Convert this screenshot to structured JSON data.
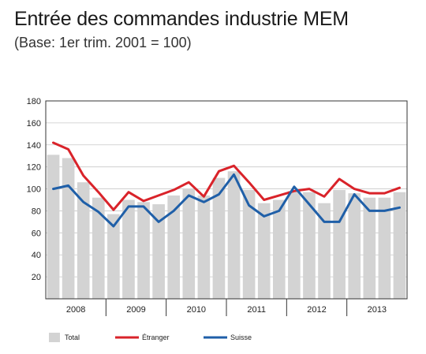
{
  "chart_data": {
    "type": "bar",
    "title": "Entrée des commandes industrie MEM",
    "subtitle": "(Base: 1er trim. 2001 = 100)",
    "xlabel": "",
    "ylabel": "",
    "ylim": [
      0,
      180
    ],
    "yticks": [
      20,
      40,
      60,
      80,
      100,
      120,
      140,
      160,
      180
    ],
    "categories": [
      "2008-Q1",
      "2008-Q2",
      "2008-Q3",
      "2008-Q4",
      "2009-Q1",
      "2009-Q2",
      "2009-Q3",
      "2009-Q4",
      "2010-Q1",
      "2010-Q2",
      "2010-Q3",
      "2010-Q4",
      "2011-Q1",
      "2011-Q2",
      "2011-Q3",
      "2011-Q4",
      "2012-Q1",
      "2012-Q2",
      "2012-Q3",
      "2012-Q4",
      "2013-Q1",
      "2013-Q2",
      "2013-Q3",
      "2013-Q4"
    ],
    "years": [
      "2008",
      "2009",
      "2010",
      "2011",
      "2012",
      "2013"
    ],
    "grid": "horizontal",
    "legend_position": "bottom",
    "series": [
      {
        "name": "Total",
        "kind": "bar",
        "color": "#d3d3d3",
        "values": [
          131,
          128,
          106,
          92,
          77,
          90,
          88,
          86,
          94,
          100,
          94,
          110,
          116,
          99,
          87,
          90,
          98,
          97,
          87,
          99,
          96,
          92,
          92,
          97
        ]
      },
      {
        "name": "Étranger",
        "kind": "line",
        "color": "#d9232a",
        "values": [
          142,
          136,
          112,
          97,
          81,
          97,
          89,
          94,
          99,
          106,
          93,
          116,
          121,
          106,
          90,
          94,
          98,
          100,
          93,
          109,
          100,
          96,
          96,
          101
        ]
      },
      {
        "name": "Suisse",
        "kind": "line",
        "color": "#1f5fa8",
        "values": [
          100,
          103,
          88,
          79,
          66,
          84,
          84,
          70,
          80,
          94,
          88,
          95,
          113,
          85,
          75,
          80,
          102,
          86,
          70,
          70,
          95,
          80,
          80,
          83
        ]
      }
    ]
  }
}
